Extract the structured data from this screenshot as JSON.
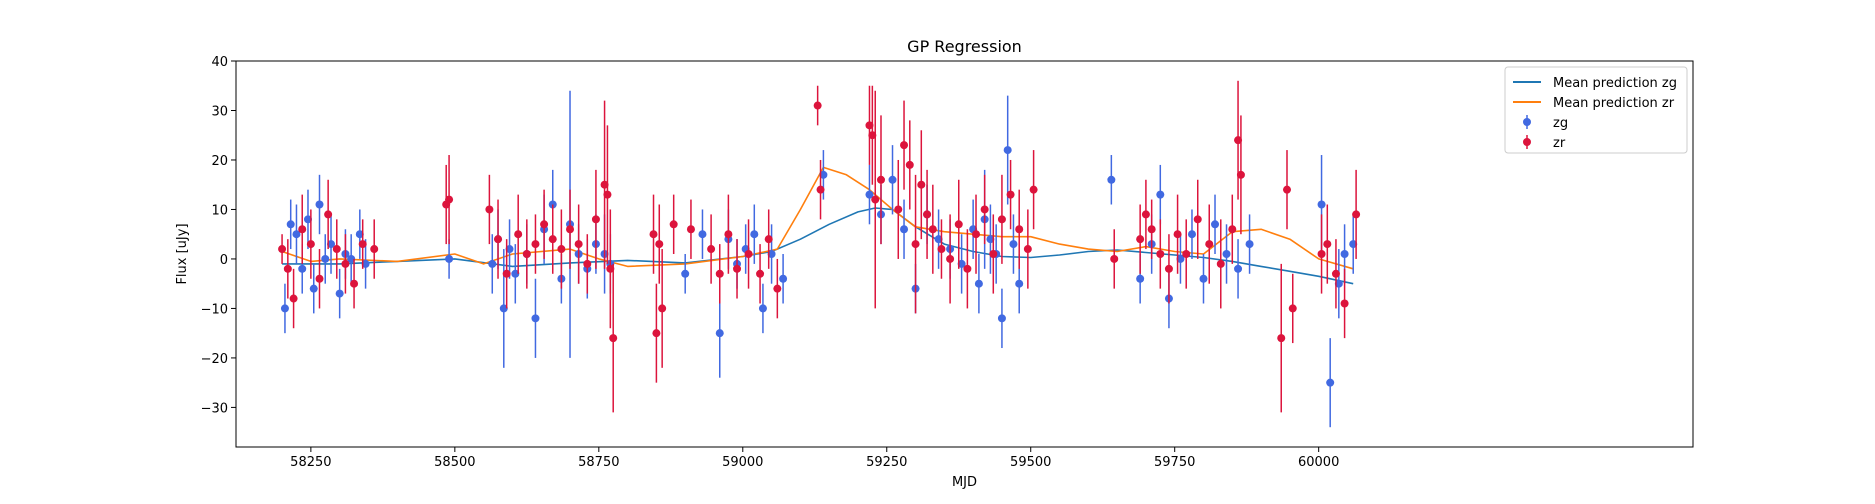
{
  "chart_data": {
    "type": "scatter",
    "title": "GP Regression",
    "xlabel": "MJD",
    "ylabel": "Flux [uJy]",
    "xlim": [
      58120,
      60650
    ],
    "ylim": [
      -38,
      40
    ],
    "xticks": [
      58250,
      58500,
      58750,
      59000,
      59250,
      59500,
      59750,
      60000
    ],
    "yticks": [
      -30,
      -20,
      -10,
      0,
      10,
      20,
      30,
      40
    ],
    "ytick_labels": [
      "−30",
      "−20",
      "−10",
      "0",
      "10",
      "20",
      "30",
      "40"
    ],
    "grid": false,
    "legend_position": "upper-right",
    "legend": [
      {
        "label": "Mean prediction zg",
        "kind": "line",
        "color": "#1f77b4"
      },
      {
        "label": "Mean prediction zr",
        "kind": "line",
        "color": "#ff7f0e"
      },
      {
        "label": "zg",
        "kind": "errorbar",
        "color": "#4169e1"
      },
      {
        "label": "zr",
        "kind": "errorbar",
        "color": "#dc143c"
      }
    ],
    "lines": [
      {
        "name": "Mean prediction zg",
        "color": "#1f77b4",
        "x": [
          58200,
          58300,
          58400,
          58500,
          58600,
          58700,
          58800,
          58900,
          59000,
          59050,
          59100,
          59150,
          59200,
          59230,
          59260,
          59300,
          59350,
          59400,
          59450,
          59500,
          59550,
          59600,
          59650,
          59700,
          59750,
          59800,
          59850,
          59900,
          59950,
          60000,
          60060
        ],
        "y": [
          -1,
          -1,
          -0.5,
          0,
          -1.5,
          -0.8,
          -0.3,
          -0.8,
          0.5,
          1.5,
          4,
          7,
          9.5,
          10.3,
          10,
          6.5,
          3,
          1.5,
          0.5,
          0.3,
          0.8,
          1.5,
          1.8,
          1.3,
          0.8,
          0.3,
          -0.5,
          -1.5,
          -2.5,
          -3.5,
          -5
        ]
      },
      {
        "name": "Mean prediction zr",
        "color": "#ff7f0e",
        "x": [
          58200,
          58250,
          58300,
          58400,
          58500,
          58550,
          58600,
          58700,
          58750,
          58800,
          58900,
          59000,
          59060,
          59100,
          59140,
          59180,
          59220,
          59260,
          59300,
          59350,
          59400,
          59450,
          59500,
          59550,
          59600,
          59650,
          59700,
          59750,
          59800,
          59850,
          59900,
          59950,
          60000,
          60060
        ],
        "y": [
          1.5,
          -0.5,
          0,
          -0.5,
          1,
          -1,
          1,
          2,
          0,
          -1.5,
          -1,
          0.5,
          2,
          10,
          18.5,
          17,
          14,
          10,
          6.5,
          5.5,
          5,
          4.5,
          4.5,
          3,
          2,
          1.5,
          2.5,
          1.5,
          1,
          5.5,
          6,
          4,
          0,
          -2
        ]
      }
    ],
    "series": [
      {
        "name": "zg",
        "color": "#4169e1",
        "x": [
          58205,
          58215,
          58225,
          58235,
          58245,
          58255,
          58265,
          58275,
          58285,
          58300,
          58310,
          58320,
          58335,
          58345,
          58490,
          58565,
          58575,
          58585,
          58595,
          58605,
          58625,
          58640,
          58655,
          58670,
          58685,
          58700,
          58715,
          58730,
          58745,
          58760,
          58770,
          58900,
          58930,
          58960,
          58975,
          58990,
          59005,
          59020,
          59035,
          59050,
          59070,
          59140,
          59220,
          59240,
          59260,
          59280,
          59300,
          59320,
          59340,
          59360,
          59380,
          59400,
          59410,
          59420,
          59430,
          59440,
          59450,
          59460,
          59470,
          59480,
          59640,
          59690,
          59710,
          59725,
          59740,
          59760,
          59780,
          59800,
          59820,
          59840,
          59860,
          59880,
          60005,
          60020,
          60035,
          60045,
          60060
        ],
        "y": [
          -10,
          7,
          5,
          -2,
          8,
          -6,
          11,
          0,
          3,
          -7,
          1,
          0,
          5,
          -1,
          0,
          -1,
          4,
          -10,
          2,
          -3,
          1,
          -12,
          6,
          11,
          -4,
          7,
          1,
          -2,
          3,
          1,
          -1,
          -3,
          5,
          -15,
          4,
          -1,
          2,
          5,
          -10,
          1,
          -4,
          17,
          13,
          9,
          16,
          6,
          -6,
          9,
          4,
          2,
          -1,
          6,
          -5,
          8,
          4,
          1,
          -12,
          22,
          3,
          -5,
          16,
          -4,
          3,
          13,
          -8,
          0,
          5,
          -4,
          7,
          1,
          -2,
          3,
          11,
          -25,
          -5,
          1,
          3
        ],
        "err": [
          5,
          5,
          6,
          5,
          6,
          5,
          6,
          5,
          6,
          5,
          5,
          5,
          5,
          5,
          4,
          6,
          6,
          12,
          6,
          6,
          6,
          8,
          7,
          7,
          5,
          27,
          6,
          6,
          6,
          8,
          6,
          4,
          5,
          9,
          6,
          5,
          5,
          6,
          5,
          6,
          5,
          5,
          6,
          6,
          7,
          6,
          5,
          6,
          6,
          6,
          6,
          6,
          6,
          10,
          7,
          6,
          6,
          11,
          6,
          6,
          5,
          5,
          6,
          6,
          6,
          5,
          5,
          5,
          6,
          6,
          6,
          6,
          10,
          9,
          7,
          6,
          6
        ]
      },
      {
        "name": "zr",
        "color": "#dc143c",
        "x": [
          58200,
          58210,
          58220,
          58235,
          58250,
          58265,
          58280,
          58295,
          58310,
          58325,
          58340,
          58360,
          58485,
          58490,
          58560,
          58575,
          58590,
          58610,
          58625,
          58640,
          58655,
          58670,
          58685,
          58700,
          58715,
          58730,
          58745,
          58760,
          58765,
          58770,
          58775,
          58845,
          58850,
          58855,
          58860,
          58880,
          58910,
          58945,
          58960,
          58975,
          58990,
          59010,
          59030,
          59045,
          59060,
          59130,
          59135,
          59220,
          59225,
          59230,
          59240,
          59270,
          59280,
          59290,
          59300,
          59310,
          59320,
          59330,
          59345,
          59360,
          59375,
          59390,
          59405,
          59420,
          59435,
          59450,
          59465,
          59480,
          59495,
          59505,
          59645,
          59690,
          59700,
          59710,
          59725,
          59740,
          59755,
          59770,
          59790,
          59810,
          59830,
          59850,
          59860,
          59865,
          59935,
          59945,
          59955,
          60005,
          60015,
          60030,
          60045,
          60065
        ],
        "y": [
          2,
          -2,
          -8,
          6,
          3,
          -4,
          9,
          2,
          -1,
          -5,
          3,
          2,
          11,
          12,
          10,
          4,
          -3,
          5,
          1,
          3,
          7,
          4,
          2,
          6,
          3,
          -1,
          8,
          15,
          13,
          -2,
          -16,
          5,
          -15,
          3,
          -10,
          7,
          6,
          2,
          -3,
          5,
          -2,
          1,
          -3,
          4,
          -6,
          31,
          14,
          27,
          25,
          12,
          16,
          10,
          23,
          19,
          3,
          15,
          9,
          6,
          2,
          0,
          7,
          -2,
          5,
          10,
          1,
          8,
          13,
          6,
          2,
          14,
          0,
          4,
          9,
          6,
          1,
          -2,
          5,
          1,
          8,
          3,
          -1,
          6,
          24,
          17,
          -16,
          14,
          -10,
          1,
          3,
          -3,
          -9,
          9
        ],
        "err": [
          3,
          6,
          6,
          7,
          7,
          6,
          7,
          6,
          6,
          5,
          5,
          6,
          8,
          9,
          7,
          8,
          7,
          8,
          7,
          6,
          7,
          7,
          8,
          8,
          8,
          6,
          10,
          17,
          14,
          12,
          15,
          8,
          10,
          8,
          12,
          6,
          6,
          7,
          6,
          8,
          6,
          7,
          6,
          6,
          6,
          4,
          6,
          8,
          10,
          22,
          13,
          10,
          9,
          9,
          14,
          11,
          9,
          9,
          6,
          9,
          9,
          8,
          8,
          7,
          8,
          9,
          7,
          8,
          8,
          8,
          6,
          7,
          7,
          6,
          7,
          7,
          8,
          7,
          8,
          8,
          9,
          7,
          12,
          12,
          15,
          8,
          7,
          8,
          8,
          7,
          7,
          9
        ]
      }
    ]
  }
}
